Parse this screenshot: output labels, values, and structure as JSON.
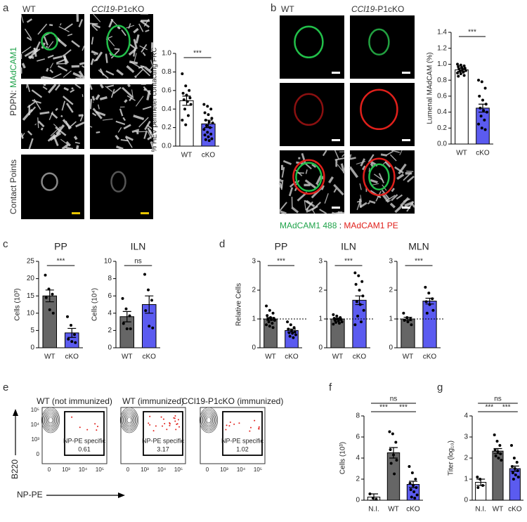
{
  "panels": {
    "a": "a",
    "b": "b",
    "c": "c",
    "d": "d",
    "e": "e",
    "f": "f",
    "g": "g"
  },
  "images": {
    "wt": "WT",
    "cko_gene": "CCl19",
    "cko_suffix": "-P1cKO",
    "row_label_stain": "PDPN: ",
    "row_label_madcam": "MAdCAM1",
    "row_label_contact": "Contact Points",
    "legend_488": "MAdCAM1 488",
    "legend_sep": " : ",
    "legend_pe": "MAdCAM1 PE"
  },
  "flow": {
    "plots": [
      {
        "title": "WT (not immunized)",
        "gate_label": "NP-PE specific",
        "percent": 0.61
      },
      {
        "title": "WT (immunized)",
        "gate_label": "NP-PE specific",
        "percent": 3.17
      },
      {
        "title": "CCl19-P1cKO (immunized)",
        "gate_label": "NP-PE specific",
        "percent": 1.02
      }
    ],
    "y_label": "B220",
    "x_label": "NP-PE",
    "y_ticks": [
      "10⁵",
      "10⁴",
      "10³",
      "0"
    ],
    "x_ticks": [
      "0",
      "10³",
      "10⁴",
      "10⁵"
    ]
  },
  "chart_data": [
    {
      "type": "bar",
      "ylabel": "% HEV perimeter contacting FRC",
      "categories": [
        "WT",
        "cKO"
      ],
      "values": [
        0.49,
        0.24
      ],
      "errors": [
        0.05,
        0.04
      ],
      "colors": [
        "#ffffff",
        "#5b5bf0"
      ],
      "points": [
        [
          0.78,
          0.65,
          0.6,
          0.57,
          0.55,
          0.52,
          0.5,
          0.48,
          0.45,
          0.4,
          0.33,
          0.28,
          0.23
        ],
        [
          0.45,
          0.43,
          0.4,
          0.36,
          0.34,
          0.3,
          0.28,
          0.26,
          0.25,
          0.22,
          0.2,
          0.18,
          0.15,
          0.13,
          0.12,
          0.1,
          0.08,
          0.07,
          0.06
        ]
      ],
      "ylim": [
        0,
        1
      ],
      "yticks": [
        {
          "value": 0,
          "label": "0.0"
        },
        0.2,
        0.4,
        0.6,
        0.8,
        {
          "value": 1,
          "label": "1.0"
        }
      ],
      "significance": [
        {
          "label": "***",
          "between": [
            "WT",
            "cKO"
          ]
        }
      ]
    },
    {
      "type": "bar",
      "ylabel": "Lumenal MAdCAM (%)",
      "categories": [
        "WT",
        "cKO"
      ],
      "values": [
        0.93,
        0.45
      ],
      "errors": [
        0.02,
        0.05
      ],
      "colors": [
        "#ffffff",
        "#5b5bf0"
      ],
      "points": [
        [
          1.0,
          0.99,
          0.98,
          0.97,
          0.96,
          0.95,
          0.94,
          0.93,
          0.92,
          0.91,
          0.9,
          0.89,
          0.88,
          0.86,
          0.85
        ],
        [
          0.8,
          0.78,
          0.7,
          0.6,
          0.55,
          0.5,
          0.45,
          0.42,
          0.4,
          0.35,
          0.3,
          0.25,
          0.2,
          0.18
        ]
      ],
      "ylim": [
        0,
        1.4
      ],
      "yticks": [
        {
          "value": 0,
          "label": "0.0"
        },
        0.2,
        0.4,
        0.6,
        0.8,
        {
          "value": 1,
          "label": "1.0"
        },
        1.2,
        1.4
      ],
      "significance": [
        {
          "label": "***",
          "between": [
            "WT",
            "cKO"
          ]
        }
      ]
    },
    {
      "type": "bar",
      "title": "PP",
      "ylabel": "Cells (10³)",
      "categories": [
        "WT",
        "cKO"
      ],
      "values": [
        15,
        4.3
      ],
      "errors": [
        1.7,
        1.3
      ],
      "colors": [
        "#666666",
        "#5b5bf0"
      ],
      "points": [
        [
          21,
          17,
          15.5,
          14.5,
          11,
          10
        ],
        [
          9,
          6.5,
          3.8,
          2.5,
          1.8,
          1.5
        ]
      ],
      "ylim": [
        0,
        25
      ],
      "yticks": [
        0,
        5,
        10,
        15,
        20,
        25
      ],
      "significance": [
        {
          "label": "***",
          "between": [
            "WT",
            "cKO"
          ]
        }
      ]
    },
    {
      "type": "bar",
      "title": "ILN",
      "ylabel": "Cells (10⁴)",
      "categories": [
        "WT",
        "cKO"
      ],
      "values": [
        3.6,
        5
      ],
      "errors": [
        0.6,
        1
      ],
      "colors": [
        "#666666",
        "#5b5bf0"
      ],
      "points": [
        [
          5.7,
          4.5,
          3.7,
          2.8,
          2.2,
          2.2
        ],
        [
          8.5,
          6.7,
          5.5,
          4.3,
          2.5,
          2.3
        ]
      ],
      "ylim": [
        0,
        10
      ],
      "yticks": [
        0,
        2,
        4,
        6,
        8,
        10
      ],
      "significance": [
        {
          "label": "ns",
          "between": [
            "WT",
            "cKO"
          ]
        }
      ]
    },
    {
      "type": "bar",
      "title": "PP",
      "ylabel": "Relative Cells",
      "categories": [
        "WT",
        "cKO"
      ],
      "values": [
        1,
        0.6
      ],
      "errors": [
        0.05,
        0.05
      ],
      "colors": [
        "#666666",
        "#5b5bf0"
      ],
      "refline": 1,
      "points": [
        [
          1.45,
          1.3,
          1.2,
          1.12,
          1.05,
          1.02,
          1,
          0.98,
          0.95,
          0.9,
          0.85,
          0.8,
          0.75,
          0.7
        ],
        [
          0.9,
          0.8,
          0.7,
          0.65,
          0.6,
          0.55,
          0.52,
          0.5,
          0.45,
          0.4,
          0.35
        ]
      ],
      "ylim": [
        0,
        3
      ],
      "yticks": [
        0,
        1,
        2,
        3
      ],
      "significance": [
        {
          "label": "***",
          "between": [
            "WT",
            "cKO"
          ]
        }
      ]
    },
    {
      "type": "bar",
      "title": "ILN",
      "categories": [
        "WT",
        "cKO"
      ],
      "values": [
        1,
        1.65
      ],
      "errors": [
        0.03,
        0.15
      ],
      "colors": [
        "#666666",
        "#5b5bf0"
      ],
      "refline": 1,
      "points": [
        [
          1.15,
          1.1,
          1.05,
          1.02,
          1,
          0.98,
          0.95,
          0.93,
          0.9,
          0.88,
          0.85,
          0.82
        ],
        [
          2.6,
          2.5,
          2.3,
          2.2,
          2,
          1.8,
          1.6,
          1.5,
          1.3,
          1.1,
          0.9,
          0.8
        ]
      ],
      "ylim": [
        0,
        3
      ],
      "yticks": [
        0,
        1,
        2,
        3
      ],
      "significance": [
        {
          "label": "***",
          "between": [
            "WT",
            "cKO"
          ]
        }
      ]
    },
    {
      "type": "bar",
      "title": "MLN",
      "categories": [
        "WT",
        "cKO"
      ],
      "values": [
        1,
        1.62
      ],
      "errors": [
        0.06,
        0.1
      ],
      "colors": [
        "#666666",
        "#5b5bf0"
      ],
      "refline": 1,
      "points": [
        [
          1.2,
          1.05,
          1,
          0.95,
          0.9,
          0.8
        ],
        [
          2.1,
          1.9,
          1.7,
          1.6,
          1.5,
          1.3,
          1.2
        ]
      ],
      "ylim": [
        0,
        3
      ],
      "yticks": [
        0,
        1,
        2,
        3
      ],
      "significance": [
        {
          "label": "***",
          "between": [
            "WT",
            "cKO"
          ]
        }
      ]
    },
    {
      "type": "bar",
      "ylabel": "Cells (10³)",
      "categories": [
        "N.I.",
        "WT",
        "cKO"
      ],
      "values": [
        0.3,
        4.5,
        1.5
      ],
      "errors": [
        0.3,
        0.5,
        0.3
      ],
      "colors": [
        "#ffffff",
        "#666666",
        "#5b5bf0"
      ],
      "points": [
        [
          0.6,
          0.2,
          0.1
        ],
        [
          6.5,
          6.3,
          5.5,
          4.8,
          4.3,
          3.8,
          3.5,
          2.5
        ],
        [
          3.2,
          2.6,
          2,
          1.6,
          1.4,
          1.2,
          1,
          0.8,
          0.5,
          0.3,
          0.2
        ]
      ],
      "ylim": [
        0,
        8
      ],
      "yticks": [
        0,
        2,
        4,
        6,
        8
      ],
      "significance": [
        {
          "label": "ns",
          "between": [
            "N.I.",
            "cKO"
          ]
        },
        {
          "label": "***",
          "between": [
            "N.I.",
            "WT"
          ]
        },
        {
          "label": "***",
          "between": [
            "WT",
            "cKO"
          ]
        }
      ]
    },
    {
      "type": "bar",
      "ylabel": "Titer (log₁₀)",
      "categories": [
        "N.I.",
        "WT",
        "cKO"
      ],
      "values": [
        0.85,
        2.33,
        1.5
      ],
      "errors": [
        0.15,
        0.12,
        0.12
      ],
      "colors": [
        "#ffffff",
        "#666666",
        "#5b5bf0"
      ],
      "points": [
        [
          1.1,
          1,
          0.7,
          0.6
        ],
        [
          3.1,
          2.8,
          2.6,
          2.4,
          2.3,
          2.2,
          2.1,
          2,
          1.9
        ],
        [
          2.6,
          2,
          1.8,
          1.6,
          1.5,
          1.4,
          1.3,
          1.2,
          1.1,
          1
        ]
      ],
      "ylim": [
        0,
        4
      ],
      "yticks": [
        0,
        1,
        2,
        3,
        4
      ],
      "significance": [
        {
          "label": "ns",
          "between": [
            "N.I.",
            "cKO"
          ]
        },
        {
          "label": "***",
          "between": [
            "N.I.",
            "WT"
          ]
        },
        {
          "label": "***",
          "between": [
            "WT",
            "cKO"
          ]
        }
      ]
    }
  ]
}
